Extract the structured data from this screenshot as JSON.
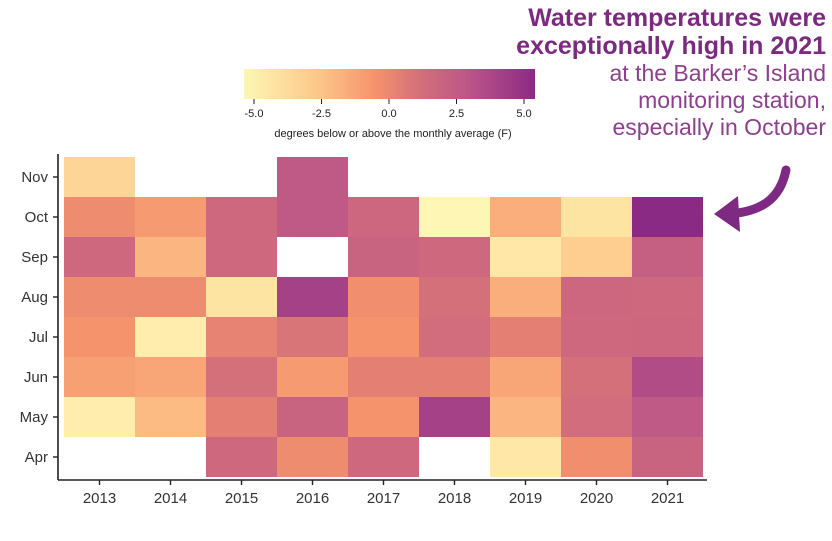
{
  "headline": {
    "bold_line1": "Water temperatures were",
    "bold_line2": "exceptionally high in 2021",
    "light_line1": "at the Barker’s Island",
    "light_line2": "monitoring station,",
    "light_line3": "especially in October"
  },
  "chart_data": {
    "type": "heatmap",
    "x_categories": [
      "2013",
      "2014",
      "2015",
      "2016",
      "2017",
      "2018",
      "2019",
      "2020",
      "2021"
    ],
    "y_categories": [
      "Apr",
      "May",
      "Jun",
      "Jul",
      "Aug",
      "Sep",
      "Oct",
      "Nov"
    ],
    "values": {
      "2013": {
        "Apr": null,
        "May": -4.5,
        "Jun": -1.0,
        "Jul": -0.5,
        "Aug": -0.2,
        "Sep": 1.5,
        "Oct": -0.2,
        "Nov": -3.2
      },
      "2014": {
        "Apr": null,
        "May": -2.0,
        "Jun": -1.2,
        "Jul": -4.5,
        "Aug": -0.2,
        "Sep": -1.8,
        "Oct": -0.8,
        "Nov": null
      },
      "2015": {
        "Apr": 1.5,
        "May": 0.3,
        "Jun": 1.0,
        "Jul": 0.2,
        "Aug": -4.0,
        "Sep": 1.5,
        "Oct": 1.5,
        "Nov": null
      },
      "2016": {
        "Apr": -0.2,
        "May": 1.8,
        "Jun": -0.8,
        "Jul": 0.8,
        "Aug": 3.8,
        "Sep": null,
        "Oct": 2.5,
        "Nov": 2.5
      },
      "2017": {
        "Apr": 1.5,
        "May": -0.5,
        "Jun": 0.3,
        "Jul": -0.5,
        "Aug": -0.3,
        "Sep": 1.8,
        "Oct": 1.6,
        "Nov": null
      },
      "2018": {
        "Apr": null,
        "May": 3.8,
        "Jun": 0.3,
        "Jul": 1.2,
        "Aug": 1.0,
        "Sep": 1.5,
        "Oct": -5.0,
        "Nov": null
      },
      "2019": {
        "Apr": -4.2,
        "May": -1.8,
        "Jun": -1.2,
        "Jul": 0.3,
        "Aug": -1.5,
        "Sep": -4.2,
        "Oct": -1.5,
        "Nov": null
      },
      "2020": {
        "Apr": -0.3,
        "May": 1.2,
        "Jun": 1.0,
        "Jul": 1.5,
        "Aug": 1.6,
        "Sep": -2.8,
        "Oct": -4.0,
        "Nov": null
      },
      "2021": {
        "Apr": 1.8,
        "May": 2.5,
        "Jun": 3.2,
        "Jul": 1.6,
        "Aug": 1.5,
        "Sep": 2.0,
        "Oct": 5.0,
        "Nov": null
      }
    },
    "colorbar": {
      "range": [
        -5.0,
        5.0
      ],
      "ticks": [
        "-5.0",
        "-2.5",
        "0.0",
        "2.5",
        "5.0"
      ],
      "label": "degrees below or above the monthly average (F)",
      "colors": [
        "#fef6b4",
        "#fdc88a",
        "#f5936c",
        "#d4707a",
        "#bb5488",
        "#8b2a85"
      ]
    }
  }
}
